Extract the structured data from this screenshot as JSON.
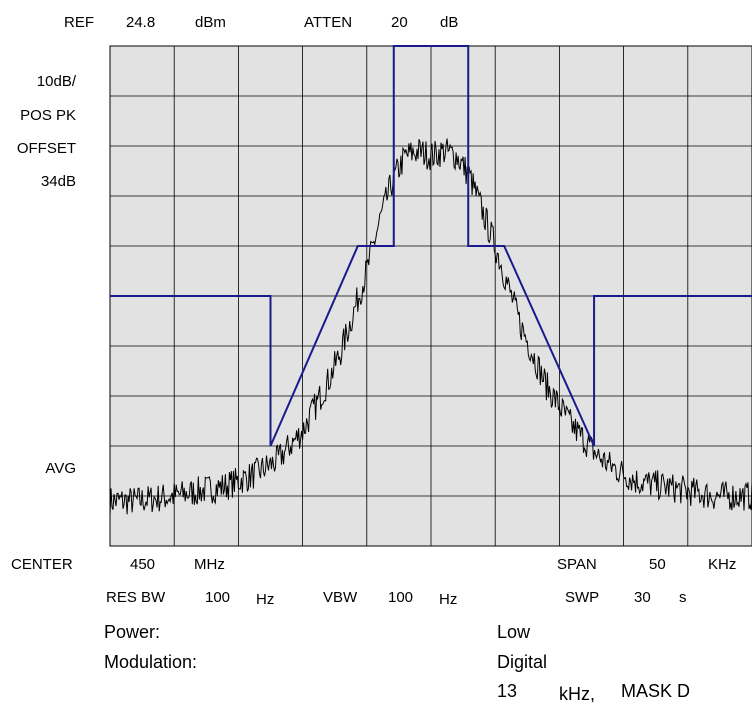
{
  "header": {
    "ref_label": "REF",
    "ref_value": "24.8",
    "ref_unit": "dBm",
    "atten_label": "ATTEN",
    "atten_value": "20",
    "atten_unit": "dB"
  },
  "left_panel": {
    "scale": "10dB/",
    "detector": "POS PK",
    "offset_label": "OFFSET",
    "offset_value": "34dB",
    "avg_label": "AVG"
  },
  "footer": {
    "center_label": "CENTER",
    "center_value": "450",
    "center_unit": "MHz",
    "span_label": "SPAN",
    "span_value": "50",
    "span_unit": "KHz",
    "rbw_label": "RES BW",
    "rbw_value": "100",
    "rbw_unit": "Hz",
    "vbw_label": "VBW",
    "vbw_value": "100",
    "vbw_unit": "Hz",
    "swp_label": "SWP",
    "swp_value": "30",
    "swp_unit": "s"
  },
  "info": {
    "power_label": "Power:",
    "power_value": "Low",
    "modulation_label": "Modulation:",
    "modulation_value": "Digital",
    "bandwidth_value": "13",
    "bandwidth_unit": "kHz,",
    "mask": "MASK D"
  },
  "colors": {
    "plot_bg": "#e2e2e2",
    "grid": "#000000",
    "mask_line": "#1a1a8c",
    "trace": "#000000"
  },
  "chart_data": {
    "type": "line",
    "x_unit": "kHz offset from center",
    "xlim": [
      -25,
      25
    ],
    "ylim": [
      -100,
      0
    ],
    "grid": true,
    "series": [
      {
        "role": "mask",
        "color": "#1a1a8c",
        "x": [
          -25,
          -12.5,
          -12.5,
          -5.7,
          -2.9,
          -2.9,
          2.9,
          2.9,
          5.7,
          12.7,
          12.7,
          25
        ],
        "y": [
          -50,
          -50,
          -80,
          -40,
          -40,
          0,
          0,
          -40,
          -40,
          -80,
          -50,
          -50
        ]
      },
      {
        "role": "trace",
        "color": "#000000",
        "x": [
          -25,
          -23,
          -20,
          -18,
          -16,
          -14,
          -12,
          -10,
          -9,
          -8,
          -7,
          -6,
          -5,
          -4,
          -3,
          -2,
          -1,
          0,
          1,
          2,
          3,
          4,
          5,
          6,
          7,
          8,
          9,
          10,
          11,
          12,
          13,
          14,
          16,
          18,
          20,
          22,
          25
        ],
        "y": [
          -91,
          -91,
          -90,
          -89,
          -88,
          -86,
          -83,
          -77,
          -72,
          -67,
          -61,
          -53,
          -45,
          -35,
          -27,
          -22,
          -21,
          -22,
          -21,
          -22,
          -26,
          -33,
          -40,
          -48,
          -56,
          -62,
          -68,
          -72,
          -76,
          -79,
          -82,
          -84,
          -87,
          -88,
          -89,
          -90,
          -90
        ]
      }
    ]
  }
}
